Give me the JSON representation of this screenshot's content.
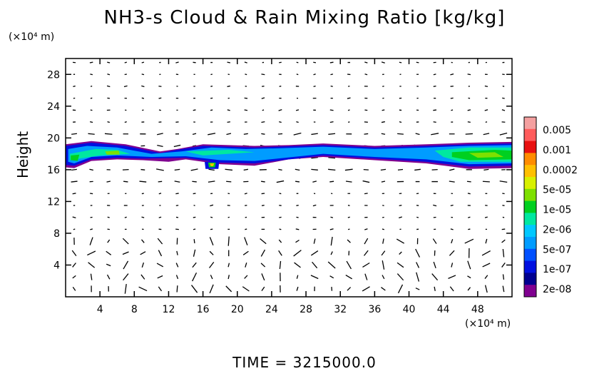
{
  "chart_data": {
    "type": "heatmap",
    "title": "NH3-s Cloud & Rain Mixing Ratio [kg/kg]",
    "ylabel": "Height",
    "y_unit": "(×10⁴ m)",
    "x_unit": "(×10⁴ m)",
    "xlim": [
      0,
      52
    ],
    "ylim": [
      0,
      30
    ],
    "x_ticks": [
      4,
      8,
      12,
      16,
      20,
      24,
      28,
      32,
      36,
      40,
      44,
      48
    ],
    "y_ticks": [
      4,
      8,
      12,
      16,
      20,
      24,
      28
    ],
    "footer": "TIME = 3215000.0",
    "colorbar": {
      "labels": [
        "0.005",
        "0.001",
        "0.0002",
        "5e-05",
        "1e-05",
        "2e-06",
        "5e-07",
        "1e-07",
        "2e-08"
      ],
      "colors": [
        "#f4a0a0",
        "#ff5c5c",
        "#e81010",
        "#ff8c00",
        "#ffc000",
        "#d8f000",
        "#7ee000",
        "#00d020",
        "#00e8a0",
        "#00c8ff",
        "#009cff",
        "#0050ff",
        "#0010e0",
        "#000090",
        "#800090"
      ]
    },
    "cloud_layer": {
      "height_range": [
        16.5,
        19.5
      ],
      "x_extent": [
        0,
        52
      ],
      "peak_mixing_ratio": "1e-05"
    },
    "wind_vectors": true
  }
}
